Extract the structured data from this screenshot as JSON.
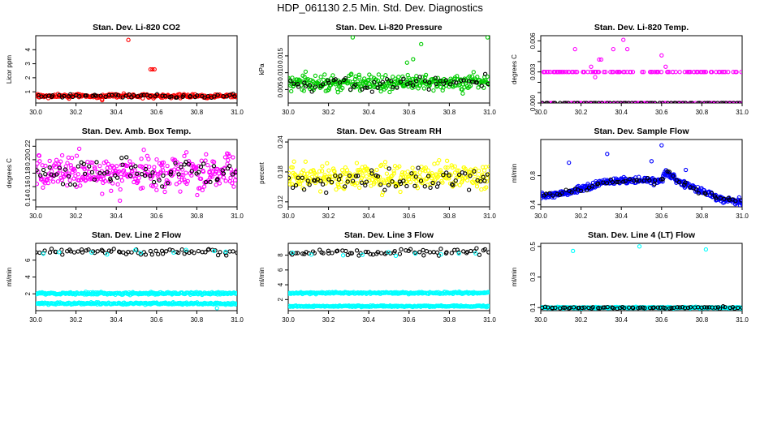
{
  "page": {
    "title": "HDP_061130  2.5 Min. Std. Dev. Diagnostics"
  },
  "colors": {
    "red": "#ff0000",
    "green": "#00cc00",
    "magenta": "#ff00ff",
    "yellow": "#ffff00",
    "blue": "#0000ff",
    "cyan": "#00ffff",
    "black": "#000000"
  },
  "chart_data": [
    {
      "type": "scatter",
      "title": "Stan. Dev. Li-820 CO2",
      "ylabel": "Licor ppm",
      "xlim": [
        30.0,
        31.0
      ],
      "ylim": [
        0.2,
        5.0
      ],
      "xticks": [
        "30.0",
        "30.2",
        "30.4",
        "30.6",
        "30.8",
        "31.0"
      ],
      "yticks": [
        1,
        2,
        3,
        4
      ],
      "ytick_labels": [
        "1",
        "2",
        "3",
        "4"
      ],
      "series": [
        {
          "name": "primary",
          "color": "red",
          "base": 0.7,
          "spread": 0.12,
          "n": 260,
          "seed": 11,
          "outliers": [
            [
              30.46,
              4.7
            ],
            [
              30.57,
              2.6
            ],
            [
              30.58,
              2.6
            ],
            [
              30.59,
              2.6
            ],
            [
              30.33,
              0.4
            ]
          ]
        },
        {
          "name": "reference",
          "color": "black",
          "base": 0.7,
          "spread": 0.1,
          "n": 60,
          "seed": 12,
          "outliers": []
        }
      ]
    },
    {
      "type": "scatter",
      "title": "Stan. Dev. Li-820 Pressure",
      "ylabel": "kPa",
      "xlim": [
        30.0,
        31.0
      ],
      "ylim": [
        0.001,
        0.021
      ],
      "xticks": [
        "30.0",
        "30.2",
        "30.4",
        "30.6",
        "30.8",
        "31.0"
      ],
      "yticks": [
        0.005,
        0.01,
        0.015
      ],
      "ytick_labels": [
        "0.005",
        "0.010",
        "0.015"
      ],
      "series": [
        {
          "name": "primary",
          "color": "green",
          "base": 0.007,
          "spread": 0.0022,
          "n": 320,
          "seed": 21,
          "outliers": [
            [
              30.32,
              0.0205
            ],
            [
              30.66,
              0.0185
            ],
            [
              30.99,
              0.0205
            ],
            [
              30.59,
              0.013
            ],
            [
              30.62,
              0.014
            ]
          ]
        },
        {
          "name": "reference",
          "color": "black",
          "base": 0.0068,
          "spread": 0.0018,
          "n": 60,
          "seed": 22,
          "outliers": []
        }
      ]
    },
    {
      "type": "scatter",
      "title": "Stan. Dev. Li-820 Temp.",
      "ylabel": "degrees C",
      "xlim": [
        30.0,
        31.0
      ],
      "ylim": [
        0.0,
        0.0065
      ],
      "xticks": [
        "30.0",
        "30.2",
        "30.4",
        "30.6",
        "30.8",
        "31.0"
      ],
      "yticks": [
        0.0,
        0.001,
        0.002,
        0.003,
        0.004,
        0.005,
        0.006
      ],
      "ytick_labels": [
        "0.000",
        "",
        "",
        "0.003",
        "",
        "",
        "0.006"
      ],
      "series": [
        {
          "name": "primary",
          "color": "magenta",
          "levels": [
            0.0,
            0.003
          ],
          "n": 200,
          "seed": 31,
          "outliers": [
            [
              30.17,
              0.0052
            ],
            [
              30.25,
              0.0035
            ],
            [
              30.29,
              0.0042
            ],
            [
              30.3,
              0.0042
            ],
            [
              30.36,
              0.0052
            ],
            [
              30.41,
              0.0061
            ],
            [
              30.43,
              0.0052
            ],
            [
              30.6,
              0.0046
            ],
            [
              30.27,
              0.0025
            ],
            [
              30.62,
              0.0035
            ],
            [
              30.85,
              0.003
            ]
          ]
        },
        {
          "name": "reference",
          "color": "black",
          "levels": [
            0.0
          ],
          "n": 60,
          "seed": 32,
          "outliers": []
        }
      ]
    },
    {
      "type": "scatter",
      "title": "Stan. Dev. Amb. Box Temp.",
      "ylabel": "degrees C",
      "xlim": [
        30.0,
        31.0
      ],
      "ylim": [
        0.13,
        0.23
      ],
      "xticks": [
        "30.0",
        "30.2",
        "30.4",
        "30.6",
        "30.8",
        "31.0"
      ],
      "yticks": [
        0.14,
        0.16,
        0.18,
        0.2,
        0.22
      ],
      "ytick_labels": [
        "0.14",
        "0.16",
        "0.18",
        "0.20",
        "0.22"
      ],
      "series": [
        {
          "name": "primary",
          "color": "magenta",
          "base": 0.18,
          "spread": 0.022,
          "n": 320,
          "seed": 41,
          "outliers": []
        },
        {
          "name": "reference",
          "color": "black",
          "base": 0.18,
          "spread": 0.018,
          "n": 70,
          "seed": 42,
          "outliers": []
        }
      ]
    },
    {
      "type": "scatter",
      "title": "Stan. Dev. Gas Stream RH",
      "ylabel": "percent",
      "xlim": [
        30.0,
        31.0
      ],
      "ylim": [
        0.11,
        0.245
      ],
      "xticks": [
        "30.0",
        "30.2",
        "30.4",
        "30.6",
        "30.8",
        "31.0"
      ],
      "yticks": [
        0.12,
        0.18,
        0.24
      ],
      "ytick_labels": [
        "0.12",
        "0.18",
        "0.24"
      ],
      "series": [
        {
          "name": "primary",
          "color": "yellow",
          "base": 0.17,
          "spread": 0.022,
          "n": 320,
          "seed": 51,
          "outliers": []
        },
        {
          "name": "reference",
          "color": "black",
          "base": 0.165,
          "spread": 0.022,
          "n": 70,
          "seed": 52,
          "outliers": []
        }
      ]
    },
    {
      "type": "scatter",
      "title": "Stan. Dev. Sample Flow",
      "ylabel": "ml/min",
      "xlim": [
        30.0,
        31.0
      ],
      "ylim": [
        0.37,
        1.3
      ],
      "xticks": [
        "30.0",
        "30.2",
        "30.4",
        "30.6",
        "30.8",
        "31.0"
      ],
      "yticks": [
        0.4,
        0.8
      ],
      "ytick_labels": [
        "0.4",
        "0.8"
      ],
      "trend": [
        [
          30.0,
          0.52
        ],
        [
          30.15,
          0.58
        ],
        [
          30.3,
          0.7
        ],
        [
          30.45,
          0.74
        ],
        [
          30.6,
          0.72
        ],
        [
          30.62,
          0.85
        ],
        [
          30.7,
          0.7
        ],
        [
          30.8,
          0.58
        ],
        [
          30.9,
          0.48
        ],
        [
          31.0,
          0.44
        ]
      ],
      "series": [
        {
          "name": "primary",
          "color": "blue",
          "spread": 0.04,
          "n": 360,
          "seed": 61,
          "outliers": [
            [
              30.14,
              0.98
            ],
            [
              30.33,
              1.1
            ],
            [
              30.6,
              1.22
            ],
            [
              30.55,
              1.0
            ],
            [
              30.72,
              0.88
            ]
          ]
        },
        {
          "name": "reference",
          "color": "black",
          "spread": 0.03,
          "n": 60,
          "seed": 62,
          "outliers": []
        }
      ]
    },
    {
      "type": "scatter",
      "title": "Stan. Dev. Line 2 Flow",
      "ylabel": "ml/min",
      "xlim": [
        30.0,
        31.0
      ],
      "ylim": [
        0.0,
        8.0
      ],
      "xticks": [
        "30.0",
        "30.2",
        "30.4",
        "30.6",
        "30.8",
        "31.0"
      ],
      "yticks": [
        2,
        4,
        6
      ],
      "ytick_labels": [
        "2",
        "4",
        "6"
      ],
      "series": [
        {
          "name": "band-high",
          "color": "cyan",
          "base": 2.05,
          "spread": 0.12,
          "n": 260,
          "seed": 71,
          "outliers": []
        },
        {
          "name": "band-low",
          "color": "cyan",
          "base": 0.85,
          "spread": 0.1,
          "n": 260,
          "seed": 72,
          "outliers": [
            [
              30.9,
              0.3
            ]
          ]
        },
        {
          "name": "reference",
          "color": "black",
          "base": 7.0,
          "spread": 0.3,
          "n": 70,
          "seed": 73,
          "outliers": []
        },
        {
          "name": "reference-cyan",
          "color": "cyan",
          "base": 6.9,
          "spread": 0.3,
          "n": 10,
          "seed": 74,
          "outliers": []
        }
      ]
    },
    {
      "type": "scatter",
      "title": "Stan. Dev. Line 3 Flow",
      "ylabel": "ml/min",
      "xlim": [
        30.0,
        31.0
      ],
      "ylim": [
        0.5,
        9.6
      ],
      "xticks": [
        "30.0",
        "30.2",
        "30.4",
        "30.6",
        "30.8",
        "31.0"
      ],
      "yticks": [
        2,
        4,
        6,
        8
      ],
      "ytick_labels": [
        "2",
        "4",
        "6",
        "8"
      ],
      "series": [
        {
          "name": "band-high",
          "color": "cyan",
          "base": 2.9,
          "spread": 0.12,
          "n": 260,
          "seed": 81,
          "outliers": []
        },
        {
          "name": "band-low",
          "color": "cyan",
          "base": 1.1,
          "spread": 0.08,
          "n": 260,
          "seed": 82,
          "outliers": []
        },
        {
          "name": "reference",
          "color": "black",
          "base": 8.4,
          "spread": 0.35,
          "n": 70,
          "seed": 83,
          "outliers": []
        },
        {
          "name": "reference-cyan",
          "color": "cyan",
          "base": 8.2,
          "spread": 0.3,
          "n": 10,
          "seed": 84,
          "outliers": []
        }
      ]
    },
    {
      "type": "scatter",
      "title": "Stan. Dev. Line 4 (LT) Flow",
      "ylabel": "ml/min",
      "xlim": [
        30.0,
        31.0
      ],
      "ylim": [
        0.08,
        0.52
      ],
      "xticks": [
        "30.0",
        "30.2",
        "30.4",
        "30.6",
        "30.8",
        "31.0"
      ],
      "yticks": [
        0.1,
        0.3,
        0.5
      ],
      "ytick_labels": [
        "0.1",
        "0.3",
        "0.5"
      ],
      "series": [
        {
          "name": "primary",
          "color": "cyan",
          "base": 0.1,
          "spread": 0.004,
          "n": 320,
          "seed": 91,
          "outliers": [
            [
              30.16,
              0.47
            ],
            [
              30.49,
              0.5
            ],
            [
              30.82,
              0.48
            ]
          ]
        },
        {
          "name": "reference",
          "color": "black",
          "base": 0.1,
          "spread": 0.005,
          "n": 70,
          "seed": 92,
          "outliers": []
        }
      ]
    }
  ]
}
